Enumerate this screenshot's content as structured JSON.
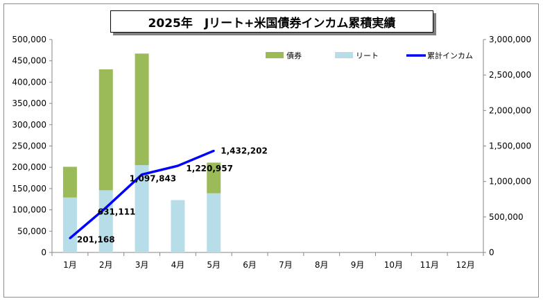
{
  "chart_data": {
    "type": "bar",
    "title": "2025年　Jリート+米国債券インカム累積実績",
    "categories": [
      "1月",
      "2月",
      "3月",
      "4月",
      "5月",
      "6月",
      "7月",
      "8月",
      "9月",
      "10月",
      "11月",
      "12月"
    ],
    "stacked": true,
    "series": [
      {
        "name": "リート",
        "type": "bar",
        "axis": "left",
        "color": "#b7dee8",
        "values": [
          129000,
          146000,
          205000,
          123000,
          139000,
          null,
          null,
          null,
          null,
          null,
          null,
          null
        ]
      },
      {
        "name": "債券",
        "type": "bar",
        "axis": "left",
        "color": "#9bbb59",
        "values": [
          72168,
          284000,
          262000,
          0,
          72000,
          null,
          null,
          null,
          null,
          null,
          null,
          null
        ]
      },
      {
        "name": "累計インカム",
        "type": "line",
        "axis": "right",
        "color": "#0000ff",
        "values": [
          201168,
          631111,
          1097843,
          1220957,
          1432202,
          null,
          null,
          null,
          null,
          null,
          null,
          null
        ],
        "labels": [
          "201,168",
          "631,111",
          "1,097,843",
          "1,220,957",
          "1,432,202"
        ]
      }
    ],
    "y_left": {
      "min": 0,
      "max": 500000,
      "step": 50000,
      "ticks": [
        "0",
        "50,000",
        "100,000",
        "150,000",
        "200,000",
        "250,000",
        "300,000",
        "350,000",
        "400,000",
        "450,000",
        "500,000"
      ]
    },
    "y_right": {
      "min": 0,
      "max": 3000000,
      "step": 500000,
      "ticks": [
        "0",
        "500,000",
        "1,000,000",
        "1,500,000",
        "2,000,000",
        "2,500,000",
        "3,000,000"
      ]
    },
    "legend": {
      "placement": "top-right",
      "order": [
        "債券",
        "リート",
        "累計インカム"
      ]
    },
    "grid": false
  }
}
